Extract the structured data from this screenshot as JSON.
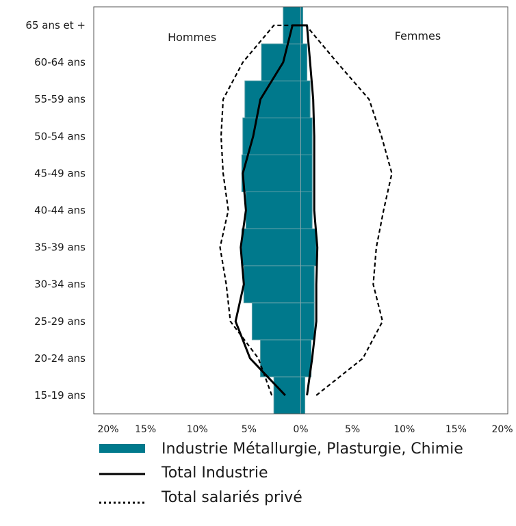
{
  "chart_data": {
    "type": "bar",
    "subtype": "population-pyramid",
    "categories": [
      "15-19 ans",
      "20-24 ans",
      "25-29 ans",
      "30-34 ans",
      "35-39 ans",
      "40-44 ans",
      "45-49 ans",
      "50-54 ans",
      "55-59 ans",
      "60-64 ans",
      "65 ans et +"
    ],
    "side_labels": {
      "left": "Hommes",
      "right": "Femmes"
    },
    "xlim": [
      -20,
      20
    ],
    "xticks": [
      {
        "value": -20,
        "label": "20%"
      },
      {
        "value": -15,
        "label": "15%"
      },
      {
        "value": -10,
        "label": "10%"
      },
      {
        "value": -5,
        "label": "5%"
      },
      {
        "value": 0,
        "label": "0%"
      },
      {
        "value": 5,
        "label": "5%"
      },
      {
        "value": 10,
        "label": "10%"
      },
      {
        "value": 15,
        "label": "15%"
      },
      {
        "value": 20,
        "label": "20%"
      }
    ],
    "grid": false,
    "legend_position": "bottom",
    "series": [
      {
        "name": "Industrie Métallurgie, Plasturgie, Chimie",
        "kind": "bar",
        "color": "#00798c",
        "men": [
          2.6,
          3.9,
          4.7,
          5.5,
          5.7,
          5.3,
          5.7,
          5.6,
          5.4,
          3.8,
          1.7
        ],
        "women": [
          0.4,
          1.0,
          1.3,
          1.3,
          1.5,
          1.1,
          1.1,
          1.1,
          0.9,
          0.6,
          0.2
        ]
      },
      {
        "name": "Total Industrie",
        "kind": "line",
        "style": "solid",
        "color": "#000000",
        "points": [
          [
            -1.5,
            0
          ],
          [
            -4.9,
            0.5
          ],
          [
            -6.3,
            1
          ],
          [
            -5.5,
            1.5
          ],
          [
            -5.8,
            2
          ],
          [
            -5.3,
            2.5
          ],
          [
            -5.6,
            3
          ],
          [
            -4.6,
            3.5
          ],
          [
            -3.9,
            4
          ],
          [
            -1.7,
            4.5
          ],
          [
            -0.8,
            5
          ],
          [
            0.6,
            5
          ],
          [
            0.9,
            4.5
          ],
          [
            1.2,
            4
          ],
          [
            1.3,
            3.5
          ],
          [
            1.3,
            3
          ],
          [
            1.3,
            2.5
          ],
          [
            1.6,
            2
          ],
          [
            1.5,
            1.5
          ],
          [
            1.5,
            1
          ],
          [
            1.1,
            0.5
          ],
          [
            0.6,
            0
          ]
        ]
      },
      {
        "name": "Total salariés privé",
        "kind": "line",
        "style": "dotted",
        "color": "#000000",
        "points": [
          [
            -2.8,
            0
          ],
          [
            -4.1,
            0.5
          ],
          [
            -6.8,
            1
          ],
          [
            -7.2,
            1.5
          ],
          [
            -7.8,
            2
          ],
          [
            -7.0,
            2.5
          ],
          [
            -7.5,
            3
          ],
          [
            -7.7,
            3.5
          ],
          [
            -7.5,
            4
          ],
          [
            -5.6,
            4.5
          ],
          [
            -2.6,
            5
          ],
          [
            0.5,
            5
          ],
          [
            3.5,
            4.5
          ],
          [
            6.6,
            4
          ],
          [
            7.8,
            3.5
          ],
          [
            8.8,
            3
          ],
          [
            8.0,
            2.5
          ],
          [
            7.3,
            2
          ],
          [
            7.0,
            1.5
          ],
          [
            7.9,
            1
          ],
          [
            6.0,
            0.5
          ],
          [
            1.5,
            0
          ]
        ]
      }
    ]
  }
}
